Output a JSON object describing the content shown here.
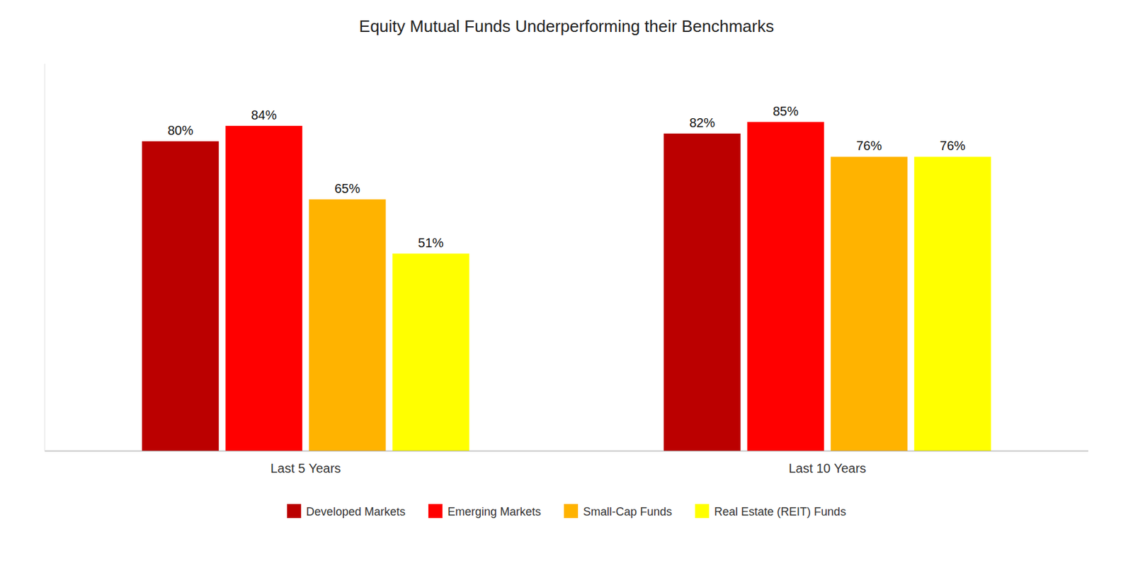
{
  "chart_data": {
    "type": "bar",
    "title": "Equity Mutual Funds Underperforming their Benchmarks",
    "categories": [
      "Last 5 Years",
      "Last 10 Years"
    ],
    "series": [
      {
        "name": "Developed Markets",
        "color": "#BB0000",
        "values": [
          80,
          82
        ],
        "value_labels": [
          "80%",
          "82%"
        ]
      },
      {
        "name": "Emerging Markets",
        "color": "#FF0000",
        "values": [
          84,
          85
        ],
        "value_labels": [
          "84%",
          "85%"
        ]
      },
      {
        "name": "Small-Cap Funds",
        "color": "#FFB300",
        "values": [
          65,
          76
        ],
        "value_labels": [
          "65%",
          "76%"
        ]
      },
      {
        "name": "Real Estate (REIT) Funds",
        "color": "#FFFF00",
        "values": [
          51,
          76
        ],
        "value_labels": [
          "51%",
          "76%"
        ]
      }
    ],
    "ylim": [
      0,
      100
    ],
    "grid": false,
    "legend": "bottom",
    "data_labels": true,
    "tick_labels": "x"
  }
}
